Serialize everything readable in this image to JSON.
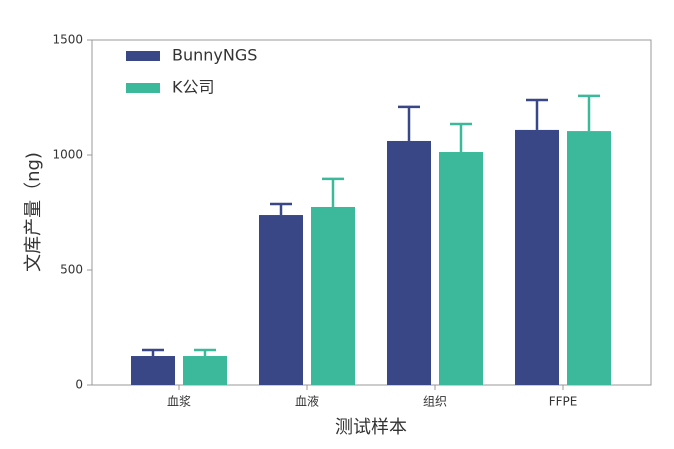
{
  "chart_data": {
    "type": "bar",
    "categories": [
      "血浆",
      "血液",
      "组织",
      "FFPE"
    ],
    "series": [
      {
        "name": "BunnyNGS",
        "color": "#3a4786",
        "values": [
          126,
          739,
          1061,
          1109
        ],
        "errors": [
          26,
          48,
          148,
          130
        ]
      },
      {
        "name": "K公司",
        "color": "#3bb99a",
        "values": [
          126,
          774,
          1013,
          1104
        ],
        "errors": [
          26,
          122,
          122,
          153
        ]
      }
    ],
    "x_label": "测试样本",
    "y_label": "文库产量（ng)",
    "ylim": [
      0,
      1500
    ],
    "yticks": [
      0,
      500,
      1000,
      1500
    ],
    "legend": "upper left"
  }
}
